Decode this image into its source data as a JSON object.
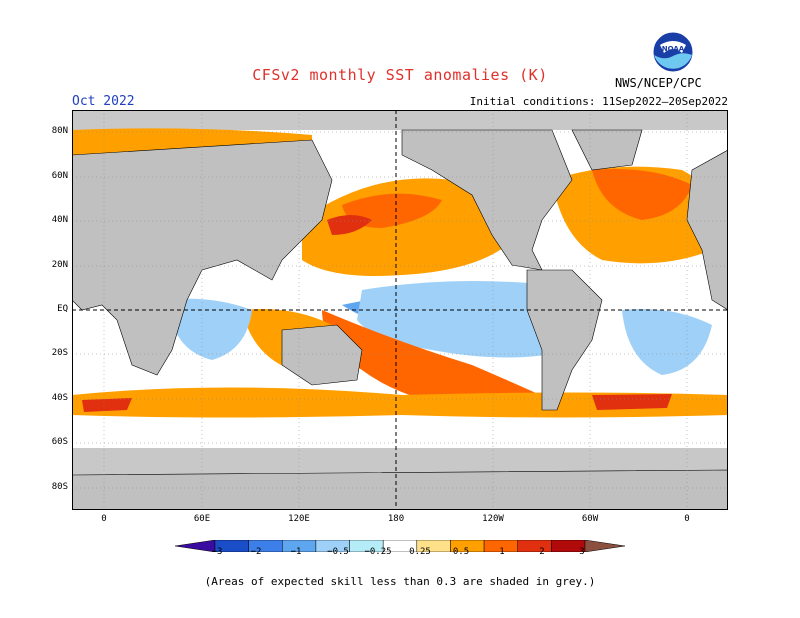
{
  "header": {
    "title": "CFSv2 monthly SST anomalies (K)",
    "month": "Oct 2022",
    "initial_conditions": "Initial conditions: 11Sep2022–20Sep2022",
    "agency": "NWS/NCEP/CPC",
    "logo_text": "NOAA"
  },
  "axes": {
    "lat_labels": [
      "80N",
      "60N",
      "40N",
      "20N",
      "EQ",
      "20S",
      "40S",
      "60S",
      "80S"
    ],
    "lon_labels": [
      "0",
      "60E",
      "120E",
      "180",
      "120W",
      "60W",
      "0"
    ]
  },
  "colorbar": {
    "labels": [
      "−3",
      "−2",
      "−1",
      "−0.5",
      "−0.25",
      "0.25",
      "0.5",
      "1",
      "2",
      "3"
    ],
    "colors": [
      "#3a0da0",
      "#1a4ec8",
      "#3c7fe8",
      "#5fa6f0",
      "#9fd0f7",
      "#b5ecf7",
      "#ffffff",
      "#ffe18a",
      "#ffa000",
      "#ff6600",
      "#e03010",
      "#b00a0a",
      "#8c5040"
    ]
  },
  "map_colors": {
    "land": "#c0c0c0",
    "no_skill": "#c8c8c8",
    "cold": "#5fa6f0",
    "cool": "#9fd0f7",
    "warm": "#ffa000",
    "hot": "#ff6600",
    "very_hot": "#e03010"
  },
  "footnote": "(Areas of expected skill less than 0.3 are shaded in grey.)"
}
